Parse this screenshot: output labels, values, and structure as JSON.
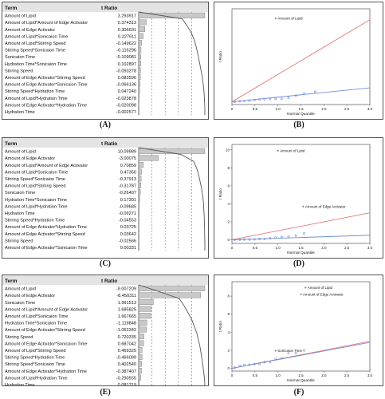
{
  "panels": [
    {
      "id": "A",
      "caption": "(A)",
      "header": {
        "term": "Term",
        "ratio": "t Ratio"
      },
      "rows": [
        {
          "term": "Amount of Lipid",
          "label": "3.293917",
          "value": 3.293917
        },
        {
          "term": "Amount of Lipid*Amount of Edge Activator",
          "label": "0.374313",
          "value": 0.374313
        },
        {
          "term": "Amount of Edge Activator",
          "label": "0.306631",
          "value": 0.306631
        },
        {
          "term": "Amount of Lipid*Sonicaion Time",
          "label": "0.227611",
          "value": 0.227611
        },
        {
          "term": "Amount of Lipid*Stirring Speed",
          "label": "-0.149622",
          "value": -0.149622
        },
        {
          "term": "Stirring Speed*Sonicaion Time",
          "label": "-0.116296",
          "value": -0.116296
        },
        {
          "term": "Sonicaion Time",
          "label": "-0.109081",
          "value": -0.109081
        },
        {
          "term": "Hydration Time*Sonicaion Time",
          "label": "0.102897",
          "value": 0.102897
        },
        {
          "term": "Stirring Speed",
          "label": "-0.093278",
          "value": -0.093278
        },
        {
          "term": "Amount of Edge Activator*Stirring Speed",
          "label": "0.083596",
          "value": 0.083596
        },
        {
          "term": "Amount of Edge Activator*Sonicaion Time",
          "label": "-0.066136",
          "value": -0.066136
        },
        {
          "term": "Stirring Speed*Hydration Time",
          "label": "0.047240",
          "value": 0.04724
        },
        {
          "term": "Amount of Lipid*Hydration Time",
          "label": "-0.023878",
          "value": -0.023878
        },
        {
          "term": "Amount of Edge Activator*Hydration Time",
          "label": "-0.020098",
          "value": -0.020098
        },
        {
          "term": "Hydration Time",
          "label": "-0.002577",
          "value": -0.002577
        }
      ]
    },
    {
      "id": "C",
      "caption": "(C)",
      "header": {
        "term": "Term",
        "ratio": "t Ratio"
      },
      "rows": [
        {
          "term": "Amount of Lipid",
          "label": "10.09989",
          "value": 10.09989
        },
        {
          "term": "Amount of Edge Activator",
          "label": "-3.00075",
          "value": -3.00075
        },
        {
          "term": "Amount of Lipid*Amount of Edge Activator",
          "label": "0.70859",
          "value": 0.70859
        },
        {
          "term": "Amount of Lipid*Sonicaion Time",
          "label": "0.47350",
          "value": 0.4735
        },
        {
          "term": "Stirring Speed*Sonicaion Time",
          "label": "-0.37913",
          "value": -0.37913
        },
        {
          "term": "Amount of Lipid*Stirring Speed",
          "label": "-0.31787",
          "value": -0.31787
        },
        {
          "term": "Sonicaion Time",
          "label": "-0.26407",
          "value": -0.26407
        },
        {
          "term": "Hydration Time*Sonicaion Time",
          "label": "0.17301",
          "value": 0.17301
        },
        {
          "term": "Amount of Lipid*Hydration Time",
          "label": "-0.09685",
          "value": -0.09685
        },
        {
          "term": "Hydration Time",
          "label": "-0.09271",
          "value": -0.09271
        },
        {
          "term": "Stirring Speed*Hydration Time",
          "label": "-0.04553",
          "value": -0.04553
        },
        {
          "term": "Amount of Edge Activator*Hydration Time",
          "label": "0.03725",
          "value": 0.03725
        },
        {
          "term": "Amount of Edge Activator*Stirring Speed",
          "label": "0.03642",
          "value": 0.03642
        },
        {
          "term": "Stirring Speed",
          "label": "-0.02566",
          "value": -0.02566
        },
        {
          "term": "Amount of Edge Activator*Sonicaion Time",
          "label": "0.00331",
          "value": 0.00331
        }
      ]
    },
    {
      "id": "E",
      "caption": "(E)",
      "header": {
        "term": "Term",
        "ratio": "t Ratio"
      },
      "rows": [
        {
          "term": "Amount of Lipid",
          "label": "-9.007209",
          "value": -9.007209
        },
        {
          "term": "Amount of Edge Activator",
          "label": "-8.450311",
          "value": -8.450311
        },
        {
          "term": "Sonicaion Time",
          "label": "1.991513",
          "value": 1.991513
        },
        {
          "term": "Amount of Lipid*Amount of Edge Activator",
          "label": "1.685825",
          "value": 1.685825
        },
        {
          "term": "Amount of Lipid*Sonicaion Time",
          "label": "1.667665",
          "value": 1.667665
        },
        {
          "term": "Hydration Time*Sonicaion Time",
          "label": "-1.119848",
          "value": -1.119848
        },
        {
          "term": "Amount of Edge Activator*Stirring Speed",
          "label": "-1.062342",
          "value": -1.062342
        },
        {
          "term": "Stirring Speed",
          "label": "0.720335",
          "value": 0.720335
        },
        {
          "term": "Amount of Edge Activator*Sonicaion Time",
          "label": "0.687042",
          "value": 0.687042
        },
        {
          "term": "Amount of Lipid*Stirring Speed",
          "label": "0.469325",
          "value": 0.469325
        },
        {
          "term": "Stirring Speed*Hydration Time",
          "label": "-0.466099",
          "value": -0.466099
        },
        {
          "term": "Stirring Speed*Sonicaion Time",
          "label": "0.402540",
          "value": 0.40254
        },
        {
          "term": "Amount of Edge Activator*Hydration Time",
          "label": "-0.387407",
          "value": -0.387407
        },
        {
          "term": "Amount of Lipid*Hydration Time",
          "label": "-0.290555",
          "value": -0.290555
        },
        {
          "term": "Hydration Time",
          "label": "0.081719",
          "value": 0.081719
        }
      ]
    }
  ],
  "plots": [
    {
      "id": "B",
      "caption": "(B)",
      "ylabel": "t Ratio",
      "xlabel": "Normal Quantile",
      "xticks": [
        "0",
        "0.5",
        "1.0",
        "1.5",
        "2.0",
        "2.5",
        "3.0"
      ],
      "yticks": [],
      "annotations": [
        {
          "text": "Amount of Lipid",
          "x": 0.95,
          "y": 3.05
        }
      ],
      "xlim": [
        0,
        3.0
      ],
      "ylim": [
        -0.1,
        3.4
      ],
      "redSlope": 1.0,
      "blueSlope": 0.17,
      "points": [
        [
          0.06,
          0.003
        ],
        [
          0.17,
          0.02
        ],
        [
          0.27,
          0.024
        ],
        [
          0.38,
          0.047
        ],
        [
          0.49,
          0.066
        ],
        [
          0.6,
          0.084
        ],
        [
          0.71,
          0.093
        ],
        [
          0.83,
          0.103
        ],
        [
          0.95,
          0.109
        ],
        [
          1.08,
          0.116
        ],
        [
          1.23,
          0.15
        ],
        [
          1.39,
          0.228
        ],
        [
          1.57,
          0.307
        ],
        [
          1.81,
          0.374
        ]
      ]
    },
    {
      "id": "D",
      "caption": "(D)",
      "ylabel": "t Ratio",
      "xlabel": "Normal Quantile",
      "xticks": [
        "0",
        "0.5",
        "1.0",
        "1.5",
        "2.0",
        "2.5",
        "3.0"
      ],
      "yticks": [
        "0",
        "2",
        "4",
        "6",
        "8",
        "10"
      ],
      "annotations": [
        {
          "text": "Amount of Lipid",
          "x": 1.0,
          "y": 9.9
        },
        {
          "text": "Amount of Edge Activator",
          "x": 1.55,
          "y": 3.7
        }
      ],
      "xlim": [
        0,
        3.0
      ],
      "ylim": [
        -0.4,
        10.6
      ],
      "redSlope": 1.0,
      "blueSlope": 0.17,
      "points": [
        [
          0.06,
          0.003
        ],
        [
          0.17,
          0.026
        ],
        [
          0.27,
          0.036
        ],
        [
          0.38,
          0.037
        ],
        [
          0.49,
          0.046
        ],
        [
          0.6,
          0.093
        ],
        [
          0.71,
          0.097
        ],
        [
          0.83,
          0.173
        ],
        [
          0.95,
          0.264
        ],
        [
          1.08,
          0.318
        ],
        [
          1.23,
          0.379
        ],
        [
          1.39,
          0.474
        ],
        [
          1.57,
          0.709
        ]
      ]
    },
    {
      "id": "F",
      "caption": "(F)",
      "ylabel": "t Ratio",
      "xlabel": "Normal Quantile",
      "xticks": [
        "0",
        "0.5",
        "1.0",
        "1.5",
        "2.0",
        "2.5",
        "3.0"
      ],
      "yticks": [
        "0",
        "2",
        "4",
        "6",
        "8"
      ],
      "annotations": [
        {
          "text": "Amount of Lipid",
          "x": 1.6,
          "y": 8.95
        },
        {
          "text": "Amount of Edge Activator",
          "x": 1.5,
          "y": 8.2
        },
        {
          "text": "Sonicaion Time",
          "x": 0.95,
          "y": 1.95
        }
      ],
      "xlim": [
        0,
        3.0
      ],
      "ylim": [
        -0.3,
        9.6
      ],
      "redSlope": 1.0,
      "blueSlope": 0.96,
      "points": [
        [
          0.06,
          0.082
        ],
        [
          0.17,
          0.291
        ],
        [
          0.27,
          0.387
        ],
        [
          0.38,
          0.403
        ],
        [
          0.49,
          0.466
        ],
        [
          0.6,
          0.469
        ],
        [
          0.71,
          0.687
        ],
        [
          0.83,
          0.72
        ],
        [
          0.95,
          1.062
        ],
        [
          1.08,
          1.12
        ],
        [
          1.23,
          1.668
        ],
        [
          1.39,
          1.686
        ],
        [
          1.57,
          1.992
        ]
      ]
    }
  ]
}
